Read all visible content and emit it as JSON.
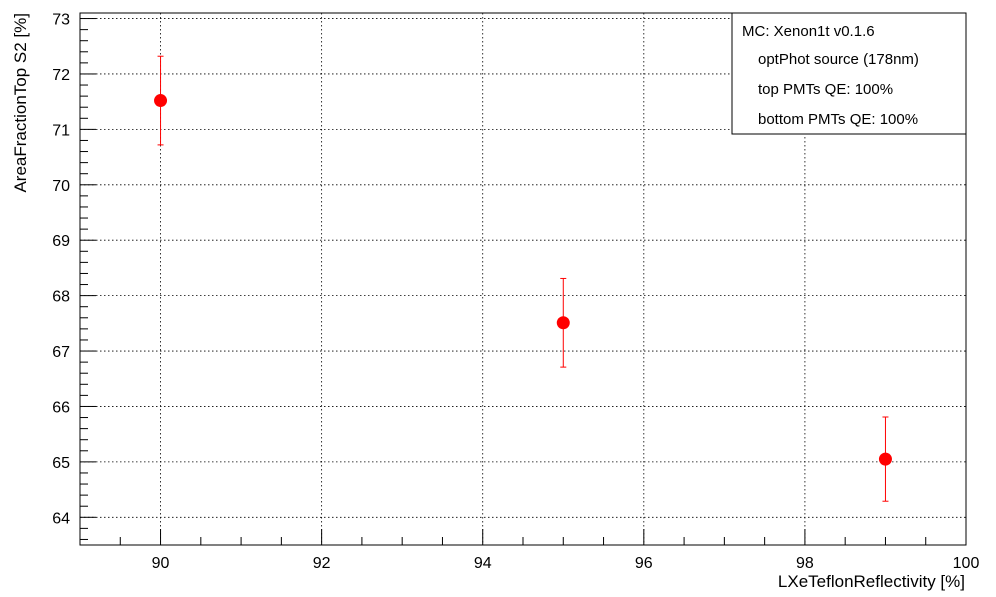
{
  "chart_data": {
    "type": "scatter",
    "xlabel": "LXeTeflonReflectivity [%]",
    "ylabel": "AreaFractionTop S2 [%]",
    "xlim": [
      89,
      100
    ],
    "ylim": [
      63.5,
      73.1
    ],
    "x_ticks": [
      90,
      92,
      94,
      96,
      98,
      100
    ],
    "y_ticks": [
      64,
      65,
      66,
      67,
      68,
      69,
      70,
      71,
      72,
      73
    ],
    "grid": true,
    "grid_style": "dotted",
    "series": [
      {
        "color": "#ff0000",
        "marker": "circle",
        "points": [
          {
            "x": 90,
            "y": 71.52,
            "yerr": 0.8
          },
          {
            "x": 95,
            "y": 67.51,
            "yerr": 0.8
          },
          {
            "x": 99,
            "y": 65.05,
            "yerr": 0.76
          }
        ]
      }
    ],
    "legend": {
      "placement": "top-right",
      "lines": [
        "MC: Xenon1t v0.1.6",
        "optPhot source (178nm)",
        "top PMTs QE: 100%",
        "bottom PMTs QE: 100%"
      ]
    }
  }
}
